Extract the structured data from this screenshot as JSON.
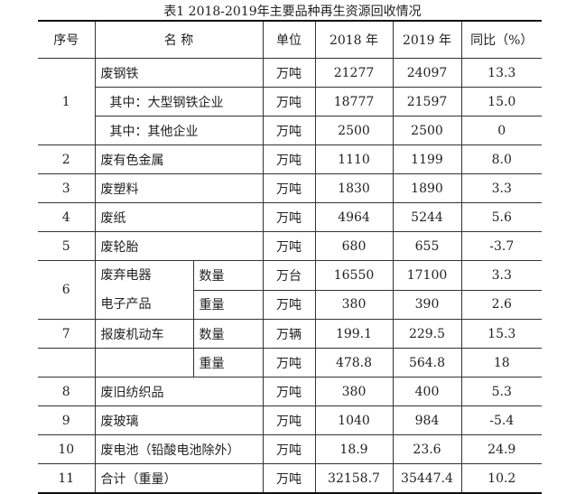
{
  "title": "表1  2018-2019年主要品种再生资源回收情况",
  "headers": {
    "seq": "序号",
    "name": "名  称",
    "unit": "单位",
    "y2018": "2018 年",
    "y2019": "2019 年",
    "yoy": "同比（%）"
  },
  "rows": [
    {
      "seq": "1",
      "name": "废钢铁",
      "unit": "万吨",
      "y2018": "21277",
      "y2019": "24097",
      "yoy": "13.3"
    },
    {
      "name": "其中：大型钢铁企业",
      "unit": "万吨",
      "y2018": "18777",
      "y2019": "21597",
      "yoy": "15.0"
    },
    {
      "name": "其中：其他企业",
      "unit": "万吨",
      "y2018": "2500",
      "y2019": "2500",
      "yoy": "0"
    },
    {
      "seq": "2",
      "name": "废有色金属",
      "unit": "万吨",
      "y2018": "1110",
      "y2019": "1199",
      "yoy": "8.0"
    },
    {
      "seq": "3",
      "name": "废塑料",
      "unit": "万吨",
      "y2018": "1830",
      "y2019": "1890",
      "yoy": "3.3"
    },
    {
      "seq": "4",
      "name": "废纸",
      "unit": "万吨",
      "y2018": "4964",
      "y2019": "5244",
      "yoy": "5.6"
    },
    {
      "seq": "5",
      "name": "废轮胎",
      "unit": "万吨",
      "y2018": "680",
      "y2019": "655",
      "yoy": "-3.7"
    },
    {
      "seq": "6",
      "name_line1": "废弃电器",
      "name_line2": "电子产品",
      "sub": "数量",
      "unit": "万台",
      "y2018": "16550",
      "y2019": "17100",
      "yoy": "3.3"
    },
    {
      "sub": "重量",
      "unit": "万吨",
      "y2018": "380",
      "y2019": "390",
      "yoy": "2.6"
    },
    {
      "seq": "7",
      "name": "报废机动车",
      "sub": "数量",
      "unit": "万辆",
      "y2018": "199.1",
      "y2019": "229.5",
      "yoy": "15.3"
    },
    {
      "sub": "重量",
      "unit": "万吨",
      "y2018": "478.8",
      "y2019": "564.8",
      "yoy": "18"
    },
    {
      "seq": "8",
      "name": "废旧纺织品",
      "unit": "万吨",
      "y2018": "380",
      "y2019": "400",
      "yoy": "5.3"
    },
    {
      "seq": "9",
      "name": "废玻璃",
      "unit": "万吨",
      "y2018": "1040",
      "y2019": "984",
      "yoy": "-5.4"
    },
    {
      "seq": "10",
      "name": "废电池（铅酸电池除外）",
      "unit": "万吨",
      "y2018": "18.9",
      "y2019": "23.6",
      "yoy": "24.9"
    },
    {
      "seq": "11",
      "name": "合计（重量）",
      "unit": "万吨",
      "y2018": "32158.7",
      "y2019": "35447.4",
      "yoy": "10.2"
    }
  ]
}
